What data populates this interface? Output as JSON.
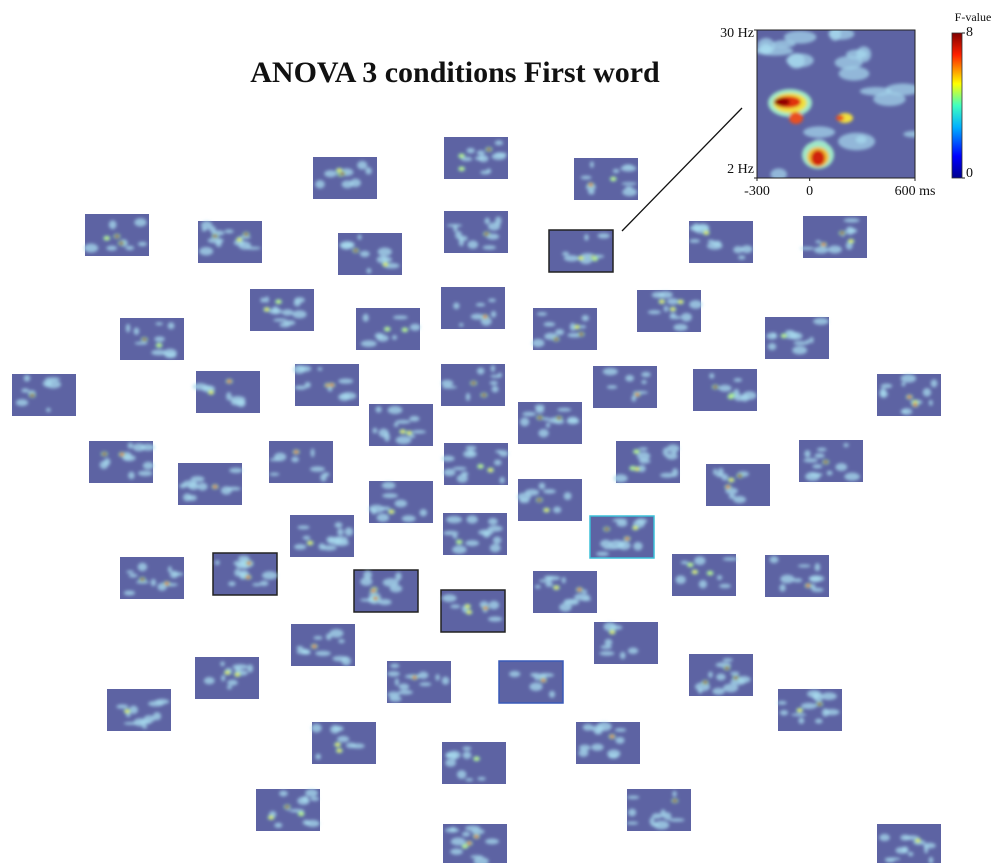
{
  "chart_data": {
    "type": "topoplot",
    "title": "ANOVA 3 conditions First word",
    "inset": {
      "ylim": [
        2,
        30
      ],
      "yticks": [
        {
          "value": 30,
          "label": "30 Hz"
        },
        {
          "value": 2,
          "label": "2 Hz"
        }
      ],
      "xlim": [
        -300,
        600
      ],
      "xticks": [
        -300,
        0,
        {
          "value": 600,
          "label": "600 ms"
        }
      ]
    },
    "colorbar": {
      "label": "F-value",
      "lim": [
        0,
        8
      ],
      "ticks": [
        8,
        0
      ]
    }
  }
}
